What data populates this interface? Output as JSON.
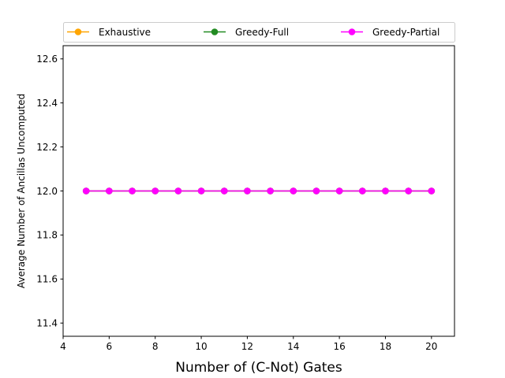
{
  "chart_data": {
    "type": "line",
    "xlabel": "Number of (C-Not) Gates",
    "ylabel": "Average Number of Ancillas Uncomputed",
    "xlim": [
      4,
      21
    ],
    "ylim": [
      11.34,
      12.66
    ],
    "x_ticks": [
      "4",
      "6",
      "8",
      "10",
      "12",
      "14",
      "16",
      "18",
      "20"
    ],
    "y_ticks": [
      "11.4",
      "11.6",
      "11.8",
      "12.0",
      "12.2",
      "12.4",
      "12.6"
    ],
    "x": [
      5,
      6,
      7,
      8,
      9,
      10,
      11,
      12,
      13,
      14,
      15,
      16,
      17,
      18,
      19,
      20
    ],
    "series": [
      {
        "name": "Exhaustive",
        "color": "#ffa500",
        "values": [
          12,
          12,
          12,
          12,
          12,
          12,
          12,
          12,
          12,
          12,
          12,
          12,
          12,
          12,
          12,
          12
        ]
      },
      {
        "name": "Greedy-Full",
        "color": "#228b22",
        "values": [
          12,
          12,
          12,
          12,
          12,
          12,
          12,
          12,
          12,
          12,
          12,
          12,
          12,
          12,
          12,
          12
        ]
      },
      {
        "name": "Greedy-Partial",
        "color": "#ff00ff",
        "values": [
          12,
          12,
          12,
          12,
          12,
          12,
          12,
          12,
          12,
          12,
          12,
          12,
          12,
          12,
          12,
          12
        ]
      }
    ],
    "legend": "top-outside",
    "grid": false
  }
}
